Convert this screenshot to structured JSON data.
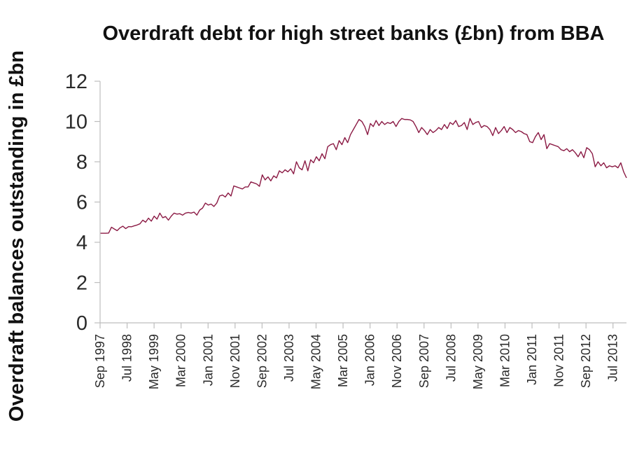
{
  "chart_data": {
    "type": "line",
    "title": "Overdraft debt for high street banks (£bn) from BBA",
    "ylabel": "Overdraft balances outstanding in £bn",
    "xlabel": "",
    "ylim": [
      0,
      12
    ],
    "yticks": [
      0,
      2,
      4,
      6,
      8,
      10,
      12
    ],
    "grid": false,
    "legend": "none",
    "x_start": "Sep 1997",
    "x_end": "Dec 2013",
    "xticks": [
      "Sep 1997",
      "Jul 1998",
      "May 1999",
      "Mar 2000",
      "Jan 2001",
      "Nov 2001",
      "Sep 2002",
      "Jul 2003",
      "May 2004",
      "Mar 2005",
      "Jan 2006",
      "Nov 2006",
      "Sep 2007",
      "Jul 2008",
      "May 2009",
      "Mar 2010",
      "Jan 2011",
      "Nov 2011",
      "Sep 2012",
      "Jul 2013"
    ],
    "series": [
      {
        "color": "#8b1a44",
        "values": [
          4.45,
          4.45,
          4.45,
          4.46,
          4.75,
          4.66,
          4.58,
          4.72,
          4.8,
          4.68,
          4.78,
          4.77,
          4.82,
          4.86,
          4.92,
          5.1,
          5.0,
          5.2,
          5.05,
          5.3,
          5.15,
          5.45,
          5.22,
          5.28,
          5.1,
          5.3,
          5.45,
          5.4,
          5.42,
          5.35,
          5.45,
          5.48,
          5.45,
          5.5,
          5.35,
          5.6,
          5.7,
          5.95,
          5.85,
          5.9,
          5.78,
          5.95,
          6.3,
          6.35,
          6.25,
          6.45,
          6.3,
          6.8,
          6.75,
          6.7,
          6.65,
          6.75,
          6.75,
          7.0,
          6.95,
          6.9,
          6.78,
          7.35,
          7.1,
          7.25,
          7.05,
          7.3,
          7.2,
          7.55,
          7.45,
          7.6,
          7.5,
          7.65,
          7.4,
          8.0,
          7.7,
          7.6,
          8.05,
          7.55,
          8.1,
          7.95,
          8.25,
          8.05,
          8.4,
          8.15,
          8.75,
          8.85,
          8.9,
          8.6,
          9.05,
          8.85,
          9.2,
          8.95,
          9.35,
          9.6,
          9.85,
          10.1,
          10.0,
          9.75,
          9.35,
          9.9,
          9.75,
          10.05,
          9.8,
          10.0,
          9.85,
          9.95,
          9.9,
          10.0,
          9.75,
          10.0,
          10.15,
          10.1,
          10.1,
          10.08,
          10.0,
          9.75,
          9.45,
          9.7,
          9.55,
          9.35,
          9.6,
          9.45,
          9.55,
          9.7,
          9.6,
          9.85,
          9.65,
          9.95,
          9.85,
          10.05,
          9.75,
          9.8,
          9.95,
          9.6,
          10.15,
          9.85,
          9.95,
          10.0,
          9.7,
          9.8,
          9.75,
          9.6,
          9.3,
          9.7,
          9.4,
          9.55,
          9.75,
          9.45,
          9.7,
          9.6,
          9.45,
          9.55,
          9.5,
          9.4,
          9.35,
          9.0,
          8.95,
          9.25,
          9.45,
          9.1,
          9.35,
          8.65,
          8.9,
          8.85,
          8.8,
          8.75,
          8.6,
          8.55,
          8.65,
          8.5,
          8.6,
          8.45,
          8.25,
          8.5,
          8.2,
          8.7,
          8.6,
          8.4,
          7.75,
          8.0,
          7.8,
          7.95,
          7.7,
          7.8,
          7.75,
          7.8,
          7.7,
          7.95,
          7.5,
          7.2
        ]
      }
    ]
  }
}
